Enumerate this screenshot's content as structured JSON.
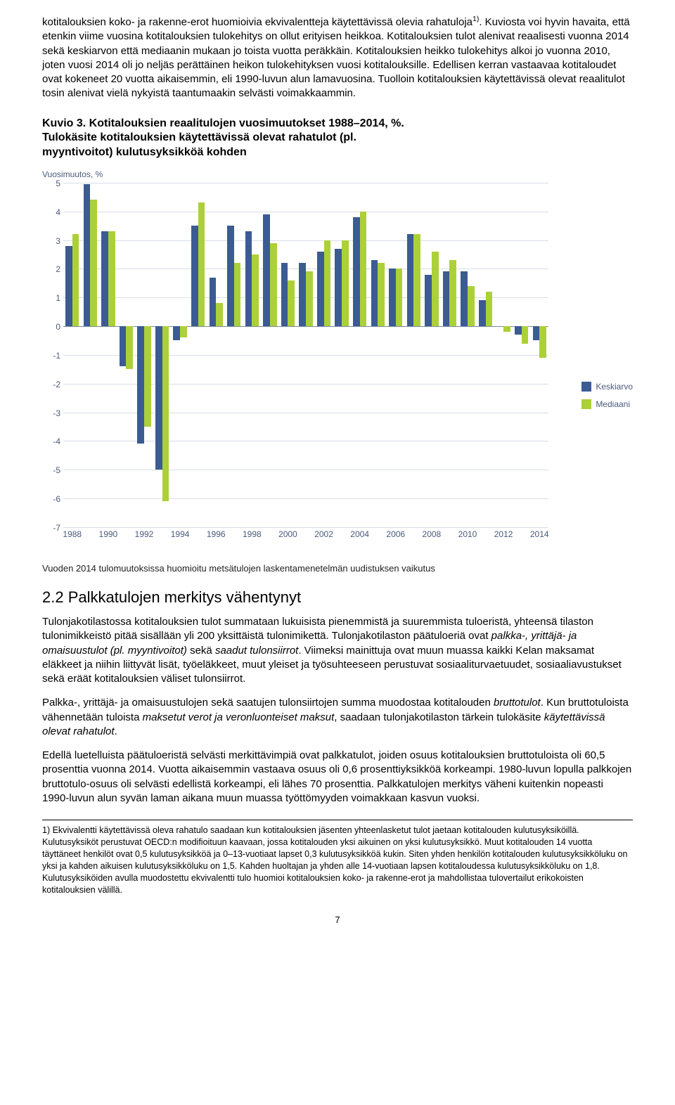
{
  "paragraphs": {
    "p1_a": "kotitalouksien koko- ja rakenne-erot huomioivia ekvivalentteja käytettävissä olevia rahatuloja",
    "p1_sup": "1)",
    "p1_b": ". Kuviosta voi hyvin havaita, että etenkin viime vuosina kotitalouksien tulokehitys on ollut erityisen heikkoa. Kotitalouksien tulot alenivat reaalisesti vuonna 2014 sekä keskiarvon että mediaanin mukaan jo toista vuotta peräkkäin. Kotitalouksien heikko tulokehitys alkoi jo vuonna 2010, joten vuosi 2014 oli jo neljäs perättäinen heikon tulokehityksen vuosi kotitalouksille. Edellisen kerran vastaavaa kotitaloudet ovat kokeneet 20 vuotta aikaisemmin, eli 1990-luvun alun lamavuosina. Tuolloin kotitalouksien käytettävissä olevat reaalitulot tosin alenivat vielä nykyistä taantumaakin selvästi voimakkaammin."
  },
  "chart": {
    "title_line1": "Kuvio 3. Kotitalouksien reaalitulojen vuosimuutokset 1988–2014, %.",
    "title_line2": "Tulokäsite kotitalouksien käytettävissä olevat rahatulot (pl.",
    "title_line3": "myyntivoitot) kulutusyksikköä kohden",
    "y_axis_label": "Vuosimuutos, %",
    "ylim": [
      -7,
      5
    ],
    "yticks": [
      5,
      4,
      3,
      2,
      1,
      0,
      -1,
      -2,
      -3,
      -4,
      -5,
      -6,
      -7
    ],
    "xticks": [
      1988,
      1990,
      1992,
      1994,
      1996,
      1998,
      2000,
      2002,
      2004,
      2006,
      2008,
      2010,
      2012,
      2014
    ],
    "years": [
      1988,
      1989,
      1990,
      1991,
      1992,
      1993,
      1994,
      1995,
      1996,
      1997,
      1998,
      1999,
      2000,
      2001,
      2002,
      2003,
      2004,
      2005,
      2006,
      2007,
      2008,
      2009,
      2010,
      2011,
      2012,
      2013,
      2014
    ],
    "keskiarvo": [
      2.8,
      4.95,
      3.3,
      -1.4,
      -4.1,
      -5.0,
      -0.5,
      3.5,
      1.7,
      3.5,
      3.3,
      3.9,
      2.2,
      2.2,
      2.6,
      2.7,
      3.8,
      2.3,
      2.0,
      3.2,
      1.8,
      1.9,
      1.9,
      0.9,
      0.0,
      -0.3,
      -0.5
    ],
    "mediaani": [
      3.2,
      4.4,
      3.3,
      -1.5,
      -3.5,
      -6.1,
      -0.4,
      4.3,
      0.8,
      2.2,
      2.5,
      2.9,
      1.6,
      1.9,
      3.0,
      3.0,
      4.0,
      2.2,
      2.0,
      3.2,
      2.6,
      2.3,
      1.4,
      1.2,
      -0.2,
      -0.6,
      -1.1
    ],
    "color_keskiarvo": "#3b5b92",
    "color_mediaani": "#acd038",
    "grid_color": "#d8dde6",
    "axis_color": "#7a8aa8",
    "legend": {
      "keskiarvo": "Keskiarvo",
      "mediaani": "Mediaani"
    },
    "note": "Vuoden 2014 tulomuutoksissa huomioitu metsätulojen laskentamenetelmän uudistuksen vaikutus"
  },
  "section": {
    "heading": "2.2 Palkkatulojen merkitys vähentynyt",
    "p2_a": "Tulonjakotilastossa kotitalouksien tulot summataan lukuisista pienemmistä ja suuremmista tuloeristä, yhteensä tilaston tulonimikkeistö pitää sisällään yli 200 yksittäistä tulonimikettä. Tulonjakotilaston päätuloeriä ovat ",
    "p2_i1": "palkka-, yrittäjä- ja omaisuustulot (pl. myyntivoitot)",
    "p2_b": " sekä ",
    "p2_i2": "saadut tulonsiirrot",
    "p2_c": ". Viimeksi mainittuja ovat muun muassa kaikki Kelan maksamat eläkkeet ja niihin liittyvät lisät, työeläkkeet, muut yleiset ja työsuhteeseen perustuvat sosiaaliturvaetuudet, sosiaaliavustukset sekä eräät kotitalouksien väliset tulonsiirrot.",
    "p3_a": "Palkka-, yrittäjä- ja omaisuustulojen sekä saatujen tulonsiirtojen summa muodostaa kotitalouden ",
    "p3_i1": "bruttotulot",
    "p3_b": ". Kun bruttotuloista vähennetään tuloista ",
    "p3_i2": "maksetut verot ja veronluonteiset maksut",
    "p3_c": ", saadaan tulonjakotilaston tärkein tulokäsite ",
    "p3_i3": "käytettävissä olevat rahatulot",
    "p3_d": ".",
    "p4": "Edellä luetelluista päätuloeristä selvästi merkittävimpiä ovat palkkatulot, joiden osuus kotitalouksien bruttotuloista oli 60,5 prosenttia vuonna 2014. Vuotta aikaisemmin vastaava osuus oli 0,6 prosenttiyksikköä korkeampi. 1980-luvun lopulla palkkojen bruttotulo-osuus oli selvästi edellistä korkeampi, eli lähes 70 prosenttia. Palkkatulojen merkitys väheni kuitenkin nopeasti 1990-luvun alun syvän laman aikana muun muassa työttömyyden voimakkaan kasvun vuoksi."
  },
  "footnote": {
    "text": "1) Ekvivalentti käytettävissä oleva rahatulo saadaan kun kotitalouksien jäsenten yhteenlasketut tulot jaetaan kotitalouden kulutusyksiköillä. Kulutusyksiköt perustuvat OECD:n modifioituun kaavaan, jossa kotitalouden yksi aikuinen on yksi kulutusyksikkö. Muut kotitalouden 14 vuotta täyttäneet henkilöt ovat 0,5 kulutusyksikköä ja 0–13-vuotiaat lapset 0,3 kulutusyksikköä kukin. Siten yhden henkilön kotitalouden kulutusyksikköluku on yksi ja kahden aikuisen kulutusyksikköluku on 1,5. Kahden huoltajan ja yhden alle 14-vuotiaan lapsen kotitaloudessa kulutusyksikköluku on 1,8. Kulutusyksiköiden avulla muodostettu ekvivalentti tulo huomioi kotitalouksien koko- ja rakenne-erot ja mahdollistaa tulovertailut erikokoisten kotitalouksien välillä."
  },
  "page_number": "7"
}
